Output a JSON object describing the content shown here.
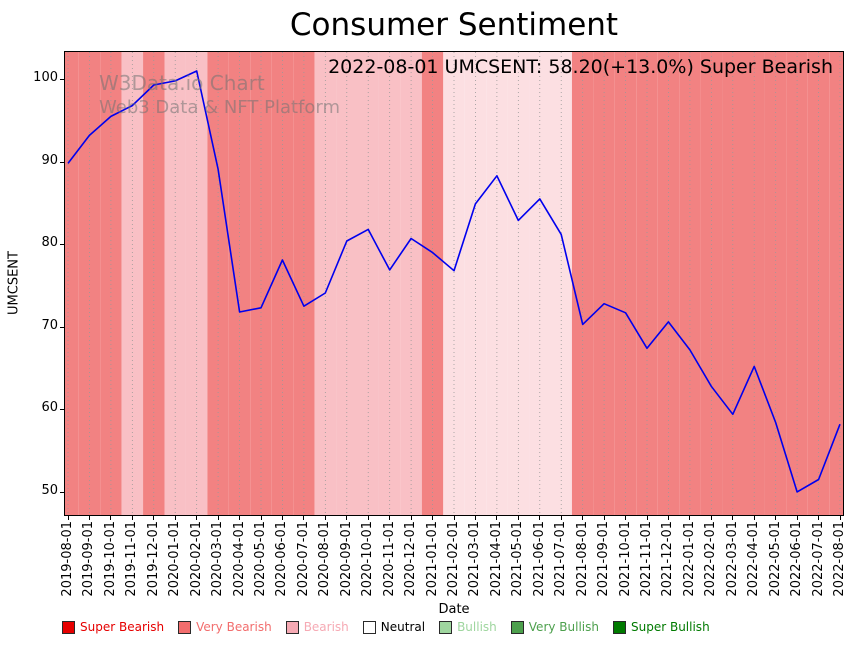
{
  "title": "Consumer Sentiment",
  "annotation": "2022-08-01 UMCSENT: 58.20(+13.0%) Super Bearish",
  "watermark": {
    "line1": "W3Data.io Chart",
    "line2": "Web3 Data & NFT Platform"
  },
  "chart_data": {
    "type": "line",
    "title": "Consumer Sentiment",
    "xlabel": "Date",
    "ylabel": "UMCSENT",
    "line_color": "#0000ee",
    "grid": "vertical-dotted",
    "legend_position": "bottom",
    "ylim": [
      47.2,
      103.3
    ],
    "yticks": [
      50,
      60,
      70,
      80,
      90,
      100
    ],
    "x": [
      "2019-08-01",
      "2019-09-01",
      "2019-10-01",
      "2019-11-01",
      "2019-12-01",
      "2020-01-01",
      "2020-02-01",
      "2020-03-01",
      "2020-04-01",
      "2020-05-01",
      "2020-06-01",
      "2020-07-01",
      "2020-08-01",
      "2020-09-01",
      "2020-10-01",
      "2020-11-01",
      "2020-12-01",
      "2021-01-01",
      "2021-02-01",
      "2021-03-01",
      "2021-04-01",
      "2021-05-01",
      "2021-06-01",
      "2021-07-01",
      "2021-08-01",
      "2021-09-01",
      "2021-10-01",
      "2021-11-01",
      "2021-12-01",
      "2022-01-01",
      "2022-02-01",
      "2022-03-01",
      "2022-04-01",
      "2022-05-01",
      "2022-06-01",
      "2022-07-01",
      "2022-08-01"
    ],
    "values": [
      89.8,
      93.2,
      95.5,
      96.8,
      99.3,
      99.8,
      101.0,
      89.1,
      71.8,
      72.3,
      78.1,
      72.5,
      74.1,
      80.4,
      81.8,
      76.9,
      80.7,
      79.0,
      76.8,
      84.9,
      88.3,
      82.9,
      85.5,
      81.2,
      70.3,
      72.8,
      71.7,
      67.4,
      70.6,
      67.2,
      62.8,
      59.4,
      65.2,
      58.4,
      50.0,
      51.5,
      58.2
    ],
    "band_categories": [
      "very_bearish",
      "very_bearish",
      "very_bearish",
      "bearish",
      "very_bearish",
      "bearish",
      "bearish",
      "very_bearish",
      "very_bearish",
      "very_bearish",
      "very_bearish",
      "very_bearish",
      "bearish",
      "bearish",
      "bearish",
      "bearish",
      "bearish",
      "very_bearish",
      "bearish_pale",
      "bearish_pale",
      "bearish_pale",
      "bearish_pale",
      "bearish_pale",
      "bearish_pale",
      "very_bearish",
      "very_bearish",
      "very_bearish",
      "very_bearish",
      "very_bearish",
      "very_bearish",
      "very_bearish",
      "very_bearish",
      "very_bearish",
      "very_bearish",
      "very_bearish",
      "very_bearish",
      "very_bearish"
    ],
    "band_colors": {
      "very_bearish": "#f28282",
      "bearish": "#f9c0c5",
      "bearish_pale": "#fcdfe2"
    }
  },
  "legend": {
    "items": [
      {
        "label": "Super Bearish",
        "color": "#e60000",
        "text_color": "#e60000"
      },
      {
        "label": "Very Bearish",
        "color": "#f26d6d",
        "text_color": "#f26d6d"
      },
      {
        "label": "Bearish",
        "color": "#f6aab4",
        "text_color": "#f6aab4"
      },
      {
        "label": "Neutral",
        "color": "#ffffff",
        "text_color": "#000000"
      },
      {
        "label": "Bullish",
        "color": "#9fd69f",
        "text_color": "#9fd69f"
      },
      {
        "label": "Very Bullish",
        "color": "#4da04d",
        "text_color": "#4da04d"
      },
      {
        "label": "Super Bullish",
        "color": "#007a00",
        "text_color": "#007a00"
      }
    ]
  }
}
